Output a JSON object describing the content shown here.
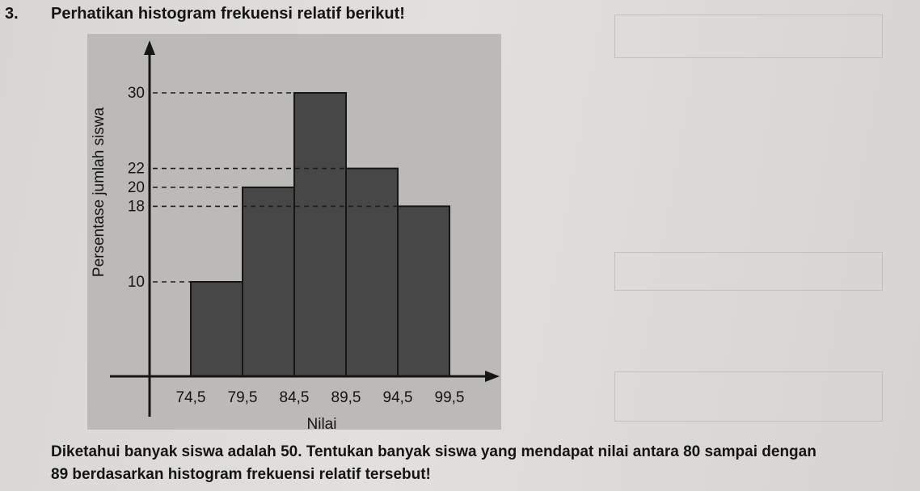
{
  "question": {
    "number": "3.",
    "title": "Perhatikan histogram frekuensi relatif berikut!",
    "body_lines": [
      "Diketahui banyak siswa adalah 50. Tentukan banyak siswa yang mendapat nilai antara 80 sampai dengan",
      "89 berdasarkan histogram frekuensi relatif tersebut!"
    ]
  },
  "chart_data": {
    "type": "bar",
    "title": "",
    "xlabel": "Nilai",
    "ylabel": "Persentase jumlah siswa",
    "x_tick_labels": [
      "74,5",
      "79,5",
      "84,5",
      "89,5",
      "94,5",
      "99,5"
    ],
    "bins": [
      {
        "from": 74.5,
        "to": 79.5,
        "value": 10
      },
      {
        "from": 79.5,
        "to": 84.5,
        "value": 20
      },
      {
        "from": 84.5,
        "to": 89.5,
        "value": 30
      },
      {
        "from": 89.5,
        "to": 94.5,
        "value": 22
      },
      {
        "from": 94.5,
        "to": 99.5,
        "value": 18
      }
    ],
    "y_tick_labels": [
      "10",
      "18",
      "20",
      "22",
      "30"
    ],
    "y_ticks": [
      10,
      18,
      20,
      22,
      30
    ],
    "ylim": [
      0,
      34
    ],
    "guide_lines": "dashed",
    "colors": {
      "bar": "#474748",
      "bar_edge": "#161616",
      "axis": "#161616"
    }
  }
}
